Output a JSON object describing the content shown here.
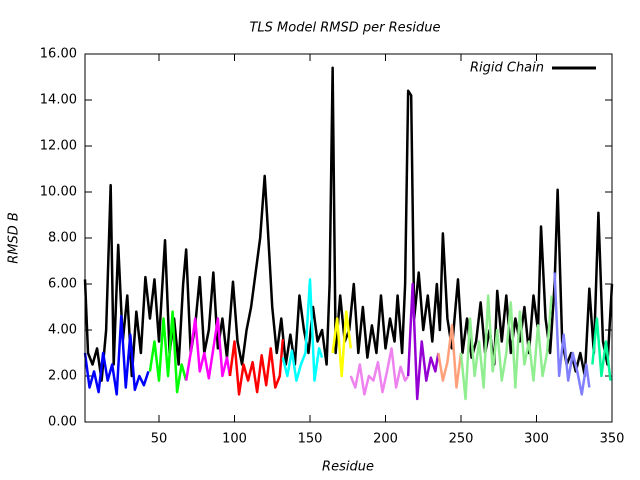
{
  "chart_data": {
    "type": "line",
    "title": "TLS Model RMSD per Residue",
    "x_label": "Residue",
    "y_label": "RMSD B",
    "xlim": [
      1,
      350
    ],
    "ylim": [
      0,
      16
    ],
    "xticks": [
      50,
      100,
      150,
      200,
      250,
      300,
      350
    ],
    "yticks": [
      {
        "value": 0,
        "label": "0.00"
      },
      {
        "value": 2,
        "label": "2.00"
      },
      {
        "value": 4,
        "label": "4.00"
      },
      {
        "value": 6,
        "label": "6.00"
      },
      {
        "value": 8,
        "label": "8.00"
      },
      {
        "value": 10,
        "label": "10.00"
      },
      {
        "value": 12,
        "label": "12.00"
      },
      {
        "value": 14,
        "label": "14.00"
      },
      {
        "value": 16,
        "label": "16.00"
      }
    ],
    "legend": "top right",
    "series": [
      {
        "name": "Rigid Chain",
        "color": "#000000",
        "x": [
          1,
          3,
          6,
          9,
          12,
          15,
          18,
          20,
          23,
          26,
          29,
          32,
          35,
          38,
          41,
          44,
          47,
          50,
          54,
          57,
          60,
          63,
          66,
          68,
          71,
          74,
          77,
          80,
          83,
          86,
          89,
          92,
          95,
          99,
          102,
          105,
          108,
          111,
          114,
          117,
          120,
          122,
          125,
          128,
          131,
          134,
          137,
          140,
          143,
          146,
          149,
          152,
          155,
          158,
          161,
          163,
          165,
          167,
          170,
          173,
          176,
          179,
          182,
          185,
          188,
          191,
          194,
          197,
          200,
          203,
          206,
          208,
          211,
          213,
          215,
          217,
          219,
          222,
          225,
          228,
          231,
          234,
          236,
          238,
          241,
          244,
          248,
          251,
          254,
          257,
          260,
          263,
          266,
          269,
          272,
          274,
          277,
          280,
          283,
          286,
          289,
          292,
          295,
          298,
          301,
          303,
          306,
          309,
          312,
          314,
          317,
          320,
          323,
          326,
          329,
          332,
          335,
          338,
          341,
          344,
          347,
          350
        ],
        "values": [
          6.2,
          3.0,
          2.5,
          3.2,
          1.8,
          4.0,
          10.3,
          2.5,
          7.7,
          3.5,
          5.5,
          2.0,
          4.8,
          3.0,
          6.3,
          4.5,
          6.2,
          3.5,
          7.9,
          3.0,
          4.5,
          2.5,
          6.0,
          7.5,
          3.0,
          4.2,
          6.3,
          3.0,
          4.0,
          6.5,
          3.2,
          4.5,
          2.8,
          6.1,
          3.5,
          2.5,
          4.0,
          5.0,
          6.5,
          8.0,
          10.7,
          8.5,
          5.0,
          3.0,
          4.5,
          2.5,
          3.8,
          2.5,
          5.5,
          4.0,
          3.0,
          5.0,
          3.5,
          4.0,
          2.5,
          6.0,
          15.4,
          3.0,
          5.5,
          3.5,
          4.0,
          6.0,
          3.0,
          5.0,
          2.8,
          4.2,
          3.0,
          5.5,
          3.2,
          4.5,
          3.5,
          5.5,
          3.0,
          6.0,
          14.4,
          14.2,
          4.5,
          6.5,
          4.0,
          5.5,
          3.5,
          6.0,
          4.0,
          8.2,
          4.5,
          3.2,
          6.2,
          3.0,
          4.5,
          2.8,
          3.5,
          5.2,
          3.0,
          4.0,
          2.5,
          5.7,
          3.5,
          5.5,
          3.0,
          4.5,
          3.5,
          5.0,
          3.0,
          5.5,
          4.0,
          8.5,
          4.5,
          3.0,
          6.0,
          10.1,
          3.5,
          2.5,
          3.0,
          2.2,
          3.0,
          2.0,
          5.8,
          3.0,
          9.1,
          3.5,
          2.5,
          6.0
        ]
      },
      {
        "color": "#0000ff",
        "x": [
          1,
          4,
          7,
          10,
          13,
          16,
          19,
          22,
          25,
          28,
          31,
          34,
          37,
          40,
          43
        ],
        "values": [
          3.0,
          1.5,
          2.2,
          1.3,
          3.0,
          1.8,
          2.5,
          1.2,
          4.6,
          1.5,
          3.8,
          1.4,
          2.0,
          1.6,
          2.2
        ]
      },
      {
        "color": "#00ff00",
        "x": [
          44,
          47,
          50,
          53,
          56,
          59,
          62,
          65,
          68
        ],
        "values": [
          2.2,
          3.5,
          1.8,
          4.5,
          2.0,
          4.8,
          1.3,
          2.5,
          1.8
        ]
      },
      {
        "color": "#ff00ff",
        "x": [
          68,
          71,
          74,
          77,
          80,
          83,
          86,
          89,
          92,
          95,
          97
        ],
        "values": [
          1.8,
          3.0,
          4.5,
          2.2,
          3.0,
          1.9,
          3.2,
          4.5,
          2.0,
          2.8,
          2.0
        ]
      },
      {
        "color": "#ff0000",
        "x": [
          97,
          100,
          103,
          106,
          109,
          112,
          115,
          118,
          121,
          124,
          127,
          130,
          132
        ],
        "values": [
          2.0,
          3.5,
          1.2,
          2.5,
          1.8,
          2.6,
          1.3,
          2.9,
          1.6,
          3.2,
          1.5,
          2.0,
          3.6
        ]
      },
      {
        "color": "#00ffff",
        "x": [
          132,
          135,
          138,
          141,
          144,
          147,
          150,
          153,
          156,
          158
        ],
        "values": [
          2.8,
          2.0,
          3.1,
          1.8,
          2.5,
          3.0,
          6.2,
          1.8,
          3.2,
          2.8
        ]
      },
      {
        "color": "#ffff00",
        "x": [
          165,
          168,
          171,
          174,
          177
        ],
        "values": [
          3.0,
          4.5,
          2.0,
          4.8,
          3.2
        ]
      },
      {
        "color": "#ee82ee",
        "x": [
          177,
          180,
          183,
          186,
          189,
          192,
          195,
          198,
          201,
          204,
          207,
          210,
          213,
          215
        ],
        "values": [
          2.0,
          1.5,
          2.5,
          1.2,
          2.0,
          1.8,
          2.6,
          1.3,
          2.2,
          3.2,
          1.5,
          2.4,
          1.8,
          2.0
        ]
      },
      {
        "color": "#9400d3",
        "x": [
          215,
          218,
          221,
          224,
          227,
          230,
          233,
          235
        ],
        "values": [
          2.0,
          6.0,
          1.0,
          3.5,
          1.8,
          2.8,
          2.2,
          3.0
        ]
      },
      {
        "color": "#ffa07a",
        "x": [
          235,
          238,
          241,
          244,
          247,
          250
        ],
        "values": [
          3.0,
          1.8,
          2.6,
          4.2,
          1.5,
          3.0
        ]
      },
      {
        "color": "#90ee90",
        "x": [
          250,
          253,
          256,
          259,
          262,
          265,
          268,
          271,
          274,
          277,
          280,
          283,
          286,
          289,
          292,
          295,
          298,
          301,
          304,
          307,
          310
        ],
        "values": [
          3.0,
          1.0,
          4.5,
          2.0,
          3.5,
          1.5,
          5.5,
          2.2,
          4.0,
          1.8,
          3.0,
          5.2,
          1.5,
          4.8,
          2.5,
          3.5,
          1.8,
          4.2,
          2.0,
          3.0,
          5.5
        ]
      },
      {
        "color": "#8080ff",
        "x": [
          312,
          315,
          318,
          321,
          324,
          327,
          330,
          333,
          335
        ],
        "values": [
          6.5,
          2.0,
          3.8,
          1.8,
          3.0,
          2.2,
          1.2,
          2.5,
          1.5
        ]
      },
      {
        "color": "#00fa9a",
        "x": [
          337,
          340,
          343,
          346,
          349
        ],
        "values": [
          2.5,
          4.5,
          2.0,
          3.5,
          1.8
        ]
      }
    ]
  }
}
